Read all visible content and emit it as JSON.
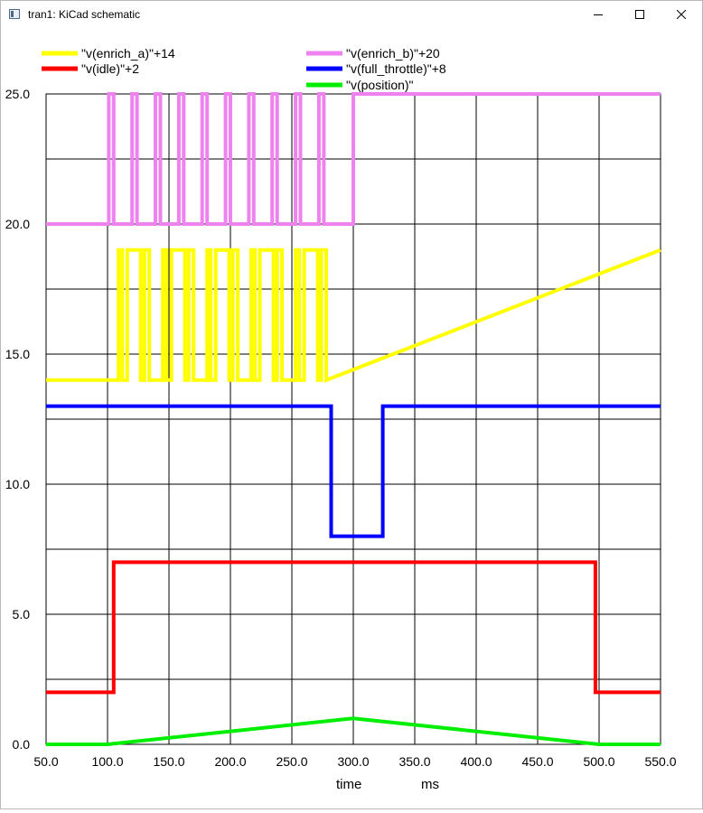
{
  "window": {
    "title": "tran1: KiCad schematic"
  },
  "chart_data": {
    "type": "line",
    "xlabel": "time",
    "xunit": "ms",
    "xlim": [
      50,
      550
    ],
    "ylim": [
      0,
      25
    ],
    "grid": true,
    "legend_position": "top",
    "x_ticks": [
      "50.0",
      "100.0",
      "150.0",
      "200.0",
      "250.0",
      "300.0",
      "350.0",
      "400.0",
      "450.0",
      "500.0",
      "550.0"
    ],
    "y_ticks": [
      "0.0",
      "5.0",
      "10.0",
      "15.0",
      "20.0",
      "25.0"
    ],
    "series": [
      {
        "name": "\"v(enrich_a)\"+14",
        "color": "#ffff00",
        "x": [
          50,
          109,
          109,
          112,
          112,
          116,
          116,
          127,
          127,
          130,
          130,
          134,
          134,
          145,
          145,
          148,
          148,
          152,
          152,
          163,
          163,
          166,
          166,
          170,
          170,
          181,
          181,
          184,
          184,
          188,
          188,
          199,
          199,
          202,
          202,
          206,
          206,
          217,
          217,
          220,
          220,
          224,
          224,
          235,
          235,
          238,
          238,
          242,
          242,
          253,
          253,
          256,
          256,
          260,
          260,
          271,
          271,
          274,
          274,
          278,
          278,
          550
        ],
        "y": [
          14,
          14,
          19,
          19,
          14,
          14,
          19,
          19,
          14,
          14,
          19,
          19,
          14,
          14,
          19,
          19,
          14,
          14,
          19,
          19,
          14,
          14,
          19,
          19,
          14,
          14,
          19,
          19,
          14,
          14,
          19,
          19,
          14,
          14,
          19,
          19,
          14,
          14,
          19,
          19,
          14,
          14,
          19,
          19,
          14,
          14,
          19,
          19,
          14,
          14,
          19,
          19,
          14,
          14,
          19,
          19,
          14,
          14,
          19,
          19,
          14,
          19
        ]
      },
      {
        "name": "\"v(idle)\"+2",
        "color": "#ff0000",
        "x": [
          50,
          105,
          105,
          497,
          497,
          550
        ],
        "y": [
          2,
          2,
          7,
          7,
          2,
          2
        ]
      },
      {
        "name": "\"v(enrich_b)\"+20",
        "color": "#ee82ee",
        "x": [
          50,
          101,
          101,
          105,
          105,
          120,
          120,
          124,
          124,
          139,
          139,
          143,
          143,
          158,
          158,
          162,
          162,
          177,
          177,
          181,
          181,
          196,
          196,
          200,
          200,
          215,
          215,
          219,
          219,
          234,
          234,
          238,
          238,
          253,
          253,
          257,
          257,
          272,
          272,
          276,
          276,
          300,
          300,
          550
        ],
        "y": [
          20,
          20,
          25,
          25,
          20,
          20,
          25,
          25,
          20,
          20,
          25,
          25,
          20,
          20,
          25,
          25,
          20,
          20,
          25,
          25,
          20,
          20,
          25,
          25,
          20,
          20,
          25,
          25,
          20,
          20,
          25,
          25,
          20,
          20,
          25,
          25,
          20,
          20,
          25,
          25,
          20,
          20,
          25,
          25
        ]
      },
      {
        "name": "\"v(full_throttle)\"+8",
        "color": "#0000ff",
        "x": [
          50,
          282,
          282,
          324,
          324,
          550
        ],
        "y": [
          13,
          13,
          8,
          8,
          13,
          13
        ]
      },
      {
        "name": "\"v(position)\"",
        "color": "#00ee00",
        "x": [
          50,
          100,
          300,
          500,
          550
        ],
        "y": [
          0,
          0,
          1,
          0,
          0
        ]
      }
    ]
  }
}
